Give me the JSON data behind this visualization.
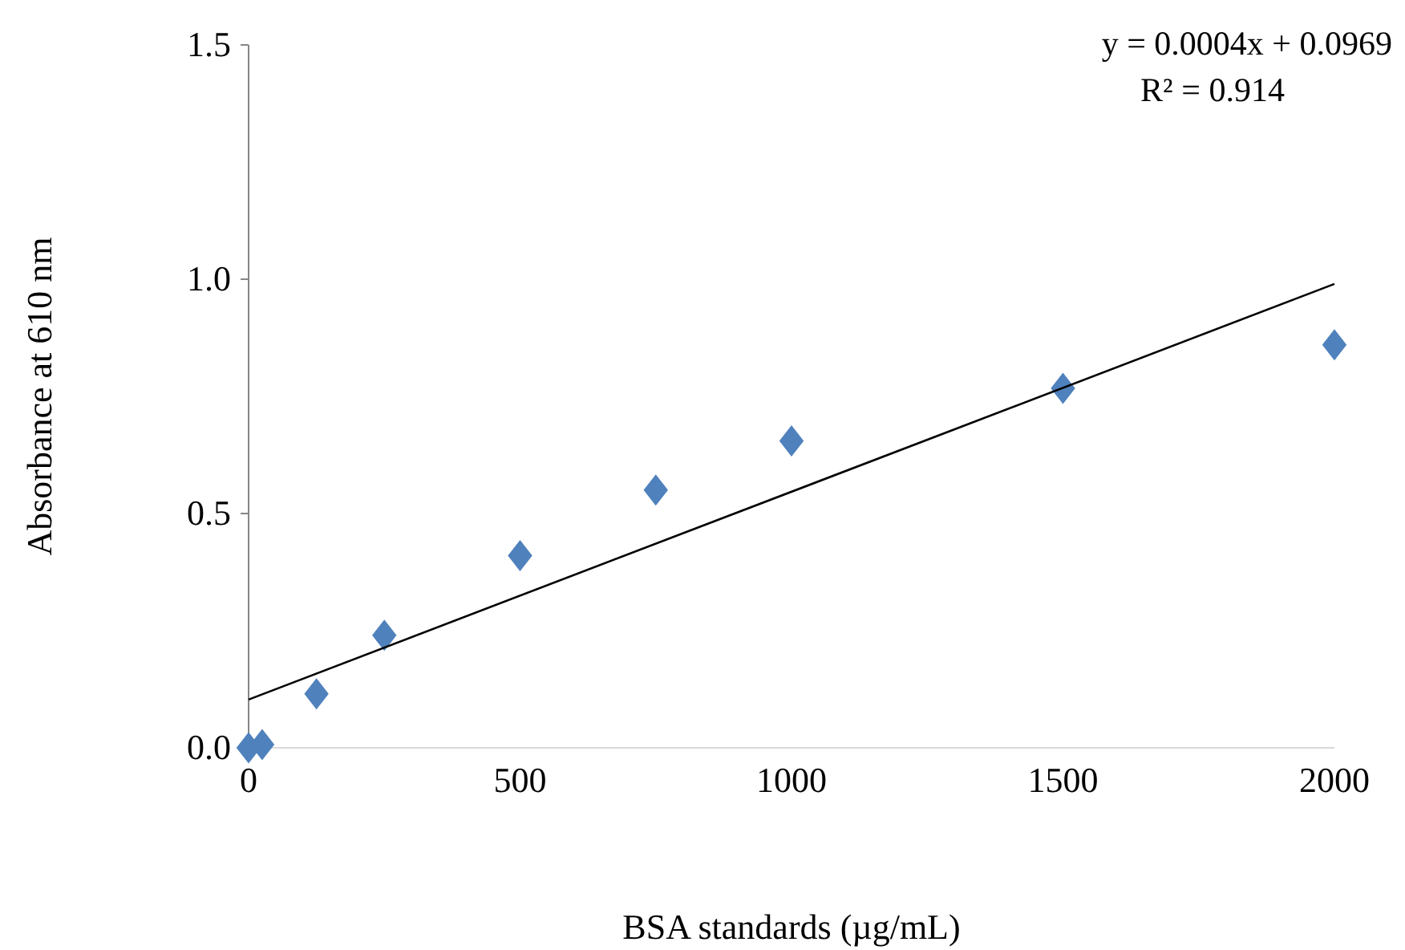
{
  "chart_data": {
    "type": "scatter",
    "xlabel": "BSA standards (µg/mL)",
    "ylabel": "Absorbance at 610 nm",
    "xlim": [
      0,
      2000
    ],
    "xticks": [
      0,
      500,
      1000,
      1500,
      2000
    ],
    "ylim": [
      0,
      1.5
    ],
    "yticks": [
      {
        "value": 0,
        "label": "0.0"
      },
      {
        "value": 0.5,
        "label": "0.5"
      },
      {
        "value": 1,
        "label": "1.0"
      },
      {
        "value": 1.5,
        "label": "1.5"
      }
    ],
    "grid": false,
    "series": [
      {
        "color": "#4f81bd",
        "marker": "diamond",
        "x": [
          0,
          25,
          125,
          250,
          500,
          750,
          1000,
          1500,
          2000
        ],
        "values": [
          0,
          0.007,
          0.115,
          0.24,
          0.41,
          0.55,
          0.655,
          0.767,
          0.86
        ]
      },
      {
        "type": "line",
        "color": "#000000",
        "marker": "none",
        "line_style": "solid",
        "x": [
          0,
          2000
        ],
        "values": [
          0.103,
          0.99
        ]
      }
    ],
    "annotations": [
      "y = 0.0004x + 0.0969",
      "R² = 0.914"
    ]
  }
}
